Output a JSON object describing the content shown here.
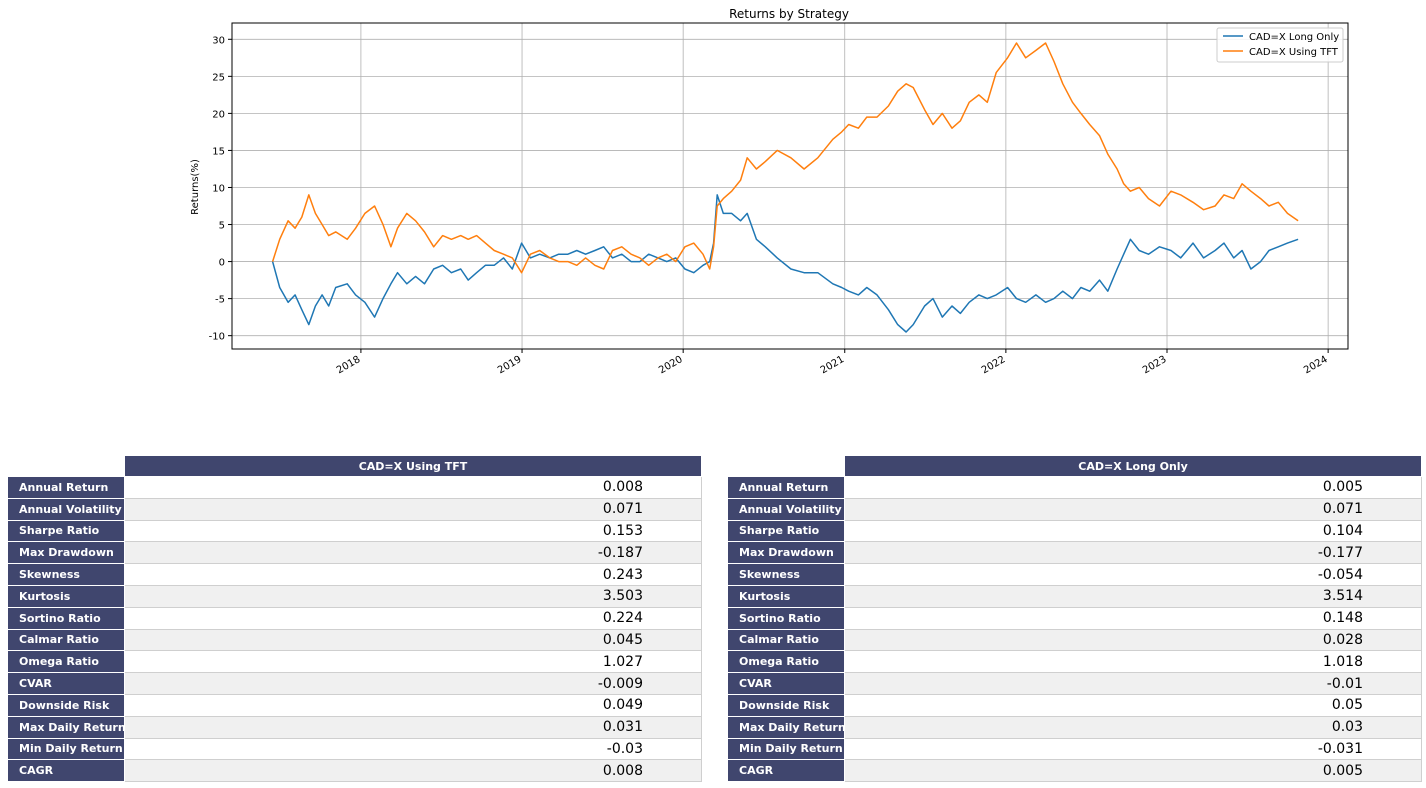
{
  "chart_data": {
    "type": "line",
    "title": "Returns by Strategy",
    "xlabel": "",
    "ylabel": "Returns(%)",
    "xlim": [
      "2017-03-15",
      "2024-02-15"
    ],
    "ylim": [
      -11.8,
      32.2
    ],
    "x_ticks": [
      "2018",
      "2019",
      "2020",
      "2021",
      "2022",
      "2023",
      "2024"
    ],
    "y_ticks": [
      -10,
      -5,
      0,
      5,
      10,
      15,
      20,
      25,
      30
    ],
    "grid": true,
    "legend_position": "top-right",
    "series": [
      {
        "name": "CAD=X Long Only",
        "color": "#1f77b4",
        "points": [
          [
            "2017-06-15",
            0
          ],
          [
            "2017-07-01",
            -3.5
          ],
          [
            "2017-07-20",
            -5.5
          ],
          [
            "2017-08-05",
            -4.5
          ],
          [
            "2017-08-20",
            -6.5
          ],
          [
            "2017-09-05",
            -8.5
          ],
          [
            "2017-09-20",
            -6.0
          ],
          [
            "2017-10-05",
            -4.5
          ],
          [
            "2017-10-20",
            -6.0
          ],
          [
            "2017-11-05",
            -3.5
          ],
          [
            "2017-12-01",
            -3.0
          ],
          [
            "2017-12-20",
            -4.5
          ],
          [
            "2018-01-10",
            -5.5
          ],
          [
            "2018-02-01",
            -7.5
          ],
          [
            "2018-02-20",
            -5.0
          ],
          [
            "2018-03-10",
            -3.0
          ],
          [
            "2018-03-25",
            -1.5
          ],
          [
            "2018-04-15",
            -3.0
          ],
          [
            "2018-05-05",
            -2.0
          ],
          [
            "2018-05-25",
            -3.0
          ],
          [
            "2018-06-15",
            -1.0
          ],
          [
            "2018-07-05",
            -0.5
          ],
          [
            "2018-07-25",
            -1.5
          ],
          [
            "2018-08-15",
            -1.0
          ],
          [
            "2018-09-01",
            -2.5
          ],
          [
            "2018-09-20",
            -1.5
          ],
          [
            "2018-10-10",
            -0.5
          ],
          [
            "2018-10-30",
            -0.5
          ],
          [
            "2018-11-20",
            0.5
          ],
          [
            "2018-12-10",
            -1.0
          ],
          [
            "2018-12-31",
            2.5
          ],
          [
            "2019-01-20",
            0.5
          ],
          [
            "2019-02-10",
            1.0
          ],
          [
            "2019-03-05",
            0.5
          ],
          [
            "2019-03-25",
            1.0
          ],
          [
            "2019-04-15",
            1.0
          ],
          [
            "2019-05-05",
            1.5
          ],
          [
            "2019-05-25",
            1.0
          ],
          [
            "2019-06-15",
            1.5
          ],
          [
            "2019-07-05",
            2.0
          ],
          [
            "2019-07-25",
            0.5
          ],
          [
            "2019-08-15",
            1.0
          ],
          [
            "2019-09-05",
            0.0
          ],
          [
            "2019-09-25",
            0.0
          ],
          [
            "2019-10-15",
            1.0
          ],
          [
            "2019-11-05",
            0.5
          ],
          [
            "2019-11-25",
            0.0
          ],
          [
            "2019-12-15",
            0.5
          ],
          [
            "2020-01-05",
            -1.0
          ],
          [
            "2020-01-25",
            -1.5
          ],
          [
            "2020-02-15",
            -0.5
          ],
          [
            "2020-03-01",
            0.0
          ],
          [
            "2020-03-10",
            2.5
          ],
          [
            "2020-03-18",
            9.0
          ],
          [
            "2020-04-01",
            6.5
          ],
          [
            "2020-04-20",
            6.5
          ],
          [
            "2020-05-10",
            5.5
          ],
          [
            "2020-05-25",
            6.5
          ],
          [
            "2020-06-15",
            3.0
          ],
          [
            "2020-07-05",
            2.0
          ],
          [
            "2020-08-01",
            0.5
          ],
          [
            "2020-09-01",
            -1.0
          ],
          [
            "2020-10-01",
            -1.5
          ],
          [
            "2020-11-01",
            -1.5
          ],
          [
            "2020-12-05",
            -3.0
          ],
          [
            "2020-12-25",
            -3.5
          ],
          [
            "2021-01-10",
            -4.0
          ],
          [
            "2021-02-01",
            -4.5
          ],
          [
            "2021-02-20",
            -3.5
          ],
          [
            "2021-03-15",
            -4.5
          ],
          [
            "2021-04-10",
            -6.5
          ],
          [
            "2021-05-01",
            -8.5
          ],
          [
            "2021-05-20",
            -9.5
          ],
          [
            "2021-06-05",
            -8.5
          ],
          [
            "2021-07-01",
            -6.0
          ],
          [
            "2021-07-20",
            -5.0
          ],
          [
            "2021-08-10",
            -7.5
          ],
          [
            "2021-09-01",
            -6.0
          ],
          [
            "2021-09-20",
            -7.0
          ],
          [
            "2021-10-10",
            -5.5
          ],
          [
            "2021-11-01",
            -4.5
          ],
          [
            "2021-11-20",
            -5.0
          ],
          [
            "2021-12-10",
            -4.5
          ],
          [
            "2022-01-05",
            -3.5
          ],
          [
            "2022-01-25",
            -5.0
          ],
          [
            "2022-02-15",
            -5.5
          ],
          [
            "2022-03-10",
            -4.5
          ],
          [
            "2022-04-01",
            -5.5
          ],
          [
            "2022-04-20",
            -5.0
          ],
          [
            "2022-05-10",
            -4.0
          ],
          [
            "2022-06-01",
            -5.0
          ],
          [
            "2022-06-20",
            -3.5
          ],
          [
            "2022-07-10",
            -4.0
          ],
          [
            "2022-08-01",
            -2.5
          ],
          [
            "2022-08-20",
            -4.0
          ],
          [
            "2022-09-10",
            -1.0
          ],
          [
            "2022-09-25",
            1.0
          ],
          [
            "2022-10-10",
            3.0
          ],
          [
            "2022-10-30",
            1.5
          ],
          [
            "2022-11-20",
            1.0
          ],
          [
            "2022-12-15",
            2.0
          ],
          [
            "2023-01-10",
            1.5
          ],
          [
            "2023-02-01",
            0.5
          ],
          [
            "2023-03-01",
            2.5
          ],
          [
            "2023-03-25",
            0.5
          ],
          [
            "2023-04-20",
            1.5
          ],
          [
            "2023-05-10",
            2.5
          ],
          [
            "2023-06-01",
            0.5
          ],
          [
            "2023-06-20",
            1.5
          ],
          [
            "2023-07-10",
            -1.0
          ],
          [
            "2023-08-01",
            0.0
          ],
          [
            "2023-08-20",
            1.5
          ],
          [
            "2023-09-10",
            2.0
          ],
          [
            "2023-10-01",
            2.5
          ],
          [
            "2023-10-25",
            3.0
          ]
        ]
      },
      {
        "name": "CAD=X Using TFT",
        "color": "#ff7f0e",
        "points": [
          [
            "2017-06-15",
            0
          ],
          [
            "2017-07-01",
            3.0
          ],
          [
            "2017-07-20",
            5.5
          ],
          [
            "2017-08-05",
            4.5
          ],
          [
            "2017-08-20",
            6.0
          ],
          [
            "2017-09-05",
            9.0
          ],
          [
            "2017-09-20",
            6.5
          ],
          [
            "2017-10-05",
            5.0
          ],
          [
            "2017-10-20",
            3.5
          ],
          [
            "2017-11-05",
            4.0
          ],
          [
            "2017-12-01",
            3.0
          ],
          [
            "2017-12-20",
            4.5
          ],
          [
            "2018-01-10",
            6.5
          ],
          [
            "2018-02-01",
            7.5
          ],
          [
            "2018-02-20",
            5.0
          ],
          [
            "2018-03-10",
            2.0
          ],
          [
            "2018-03-25",
            4.5
          ],
          [
            "2018-04-15",
            6.5
          ],
          [
            "2018-05-05",
            5.5
          ],
          [
            "2018-05-25",
            4.0
          ],
          [
            "2018-06-15",
            2.0
          ],
          [
            "2018-07-05",
            3.5
          ],
          [
            "2018-07-25",
            3.0
          ],
          [
            "2018-08-15",
            3.5
          ],
          [
            "2018-09-01",
            3.0
          ],
          [
            "2018-09-20",
            3.5
          ],
          [
            "2018-10-10",
            2.5
          ],
          [
            "2018-10-30",
            1.5
          ],
          [
            "2018-11-20",
            1.0
          ],
          [
            "2018-12-10",
            0.5
          ],
          [
            "2018-12-31",
            -1.5
          ],
          [
            "2019-01-20",
            1.0
          ],
          [
            "2019-02-10",
            1.5
          ],
          [
            "2019-03-05",
            0.5
          ],
          [
            "2019-03-25",
            0.0
          ],
          [
            "2019-04-15",
            0.0
          ],
          [
            "2019-05-05",
            -0.5
          ],
          [
            "2019-05-25",
            0.5
          ],
          [
            "2019-06-15",
            -0.5
          ],
          [
            "2019-07-05",
            -1.0
          ],
          [
            "2019-07-25",
            1.5
          ],
          [
            "2019-08-15",
            2.0
          ],
          [
            "2019-09-05",
            1.0
          ],
          [
            "2019-09-25",
            0.5
          ],
          [
            "2019-10-15",
            -0.5
          ],
          [
            "2019-11-05",
            0.5
          ],
          [
            "2019-11-25",
            1.0
          ],
          [
            "2019-12-15",
            0.0
          ],
          [
            "2020-01-05",
            2.0
          ],
          [
            "2020-01-25",
            2.5
          ],
          [
            "2020-02-15",
            1.0
          ],
          [
            "2020-03-01",
            -1.0
          ],
          [
            "2020-03-10",
            2.0
          ],
          [
            "2020-03-18",
            7.5
          ],
          [
            "2020-04-01",
            8.5
          ],
          [
            "2020-04-20",
            9.5
          ],
          [
            "2020-05-10",
            11.0
          ],
          [
            "2020-05-25",
            14.0
          ],
          [
            "2020-06-15",
            12.5
          ],
          [
            "2020-07-05",
            13.5
          ],
          [
            "2020-08-01",
            15.0
          ],
          [
            "2020-09-01",
            14.0
          ],
          [
            "2020-10-01",
            12.5
          ],
          [
            "2020-11-01",
            14.0
          ],
          [
            "2020-12-05",
            16.5
          ],
          [
            "2020-12-25",
            17.5
          ],
          [
            "2021-01-10",
            18.5
          ],
          [
            "2021-02-01",
            18.0
          ],
          [
            "2021-02-20",
            19.5
          ],
          [
            "2021-03-15",
            19.5
          ],
          [
            "2021-04-10",
            21.0
          ],
          [
            "2021-05-01",
            23.0
          ],
          [
            "2021-05-20",
            24.0
          ],
          [
            "2021-06-05",
            23.5
          ],
          [
            "2021-07-01",
            20.5
          ],
          [
            "2021-07-20",
            18.5
          ],
          [
            "2021-08-10",
            20.0
          ],
          [
            "2021-09-01",
            18.0
          ],
          [
            "2021-09-20",
            19.0
          ],
          [
            "2021-10-10",
            21.5
          ],
          [
            "2021-11-01",
            22.5
          ],
          [
            "2021-11-20",
            21.5
          ],
          [
            "2021-12-10",
            25.5
          ],
          [
            "2022-01-05",
            27.5
          ],
          [
            "2022-01-25",
            29.5
          ],
          [
            "2022-02-15",
            27.5
          ],
          [
            "2022-03-10",
            28.5
          ],
          [
            "2022-04-01",
            29.5
          ],
          [
            "2022-04-20",
            27.0
          ],
          [
            "2022-05-10",
            24.0
          ],
          [
            "2022-06-01",
            21.5
          ],
          [
            "2022-06-20",
            20.0
          ],
          [
            "2022-07-10",
            18.5
          ],
          [
            "2022-08-01",
            17.0
          ],
          [
            "2022-08-20",
            14.5
          ],
          [
            "2022-09-10",
            12.5
          ],
          [
            "2022-09-25",
            10.5
          ],
          [
            "2022-10-10",
            9.5
          ],
          [
            "2022-10-30",
            10.0
          ],
          [
            "2022-11-20",
            8.5
          ],
          [
            "2022-12-15",
            7.5
          ],
          [
            "2023-01-10",
            9.5
          ],
          [
            "2023-02-01",
            9.0
          ],
          [
            "2023-03-01",
            8.0
          ],
          [
            "2023-03-25",
            7.0
          ],
          [
            "2023-04-20",
            7.5
          ],
          [
            "2023-05-10",
            9.0
          ],
          [
            "2023-06-01",
            8.5
          ],
          [
            "2023-06-20",
            10.5
          ],
          [
            "2023-07-10",
            9.5
          ],
          [
            "2023-08-01",
            8.5
          ],
          [
            "2023-08-20",
            7.5
          ],
          [
            "2023-09-10",
            8.0
          ],
          [
            "2023-10-01",
            6.5
          ],
          [
            "2023-10-25",
            5.5
          ]
        ]
      }
    ]
  },
  "tables": [
    {
      "header": "CAD=X Using TFT",
      "rows": [
        {
          "label": "Annual Return",
          "value": "0.008"
        },
        {
          "label": "Annual Volatility",
          "value": "0.071"
        },
        {
          "label": "Sharpe Ratio",
          "value": "0.153"
        },
        {
          "label": "Max Drawdown",
          "value": "-0.187"
        },
        {
          "label": "Skewness",
          "value": "0.243"
        },
        {
          "label": "Kurtosis",
          "value": "3.503"
        },
        {
          "label": "Sortino Ratio",
          "value": "0.224"
        },
        {
          "label": "Calmar Ratio",
          "value": "0.045"
        },
        {
          "label": "Omega Ratio",
          "value": "1.027"
        },
        {
          "label": "CVAR",
          "value": "-0.009"
        },
        {
          "label": "Downside Risk",
          "value": "0.049"
        },
        {
          "label": "Max Daily Return",
          "value": "0.031"
        },
        {
          "label": "Min Daily Return",
          "value": "-0.03"
        },
        {
          "label": "CAGR",
          "value": "0.008"
        }
      ]
    },
    {
      "header": "CAD=X Long Only",
      "rows": [
        {
          "label": "Annual Return",
          "value": "0.005"
        },
        {
          "label": "Annual Volatility",
          "value": "0.071"
        },
        {
          "label": "Sharpe Ratio",
          "value": "0.104"
        },
        {
          "label": "Max Drawdown",
          "value": "-0.177"
        },
        {
          "label": "Skewness",
          "value": "-0.054"
        },
        {
          "label": "Kurtosis",
          "value": "3.514"
        },
        {
          "label": "Sortino Ratio",
          "value": "0.148"
        },
        {
          "label": "Calmar Ratio",
          "value": "0.028"
        },
        {
          "label": "Omega Ratio",
          "value": "1.018"
        },
        {
          "label": "CVAR",
          "value": "-0.01"
        },
        {
          "label": "Downside Risk",
          "value": "0.05"
        },
        {
          "label": "Max Daily Return",
          "value": "0.03"
        },
        {
          "label": "Min Daily Return",
          "value": "-0.031"
        },
        {
          "label": "CAGR",
          "value": "0.005"
        }
      ]
    }
  ]
}
